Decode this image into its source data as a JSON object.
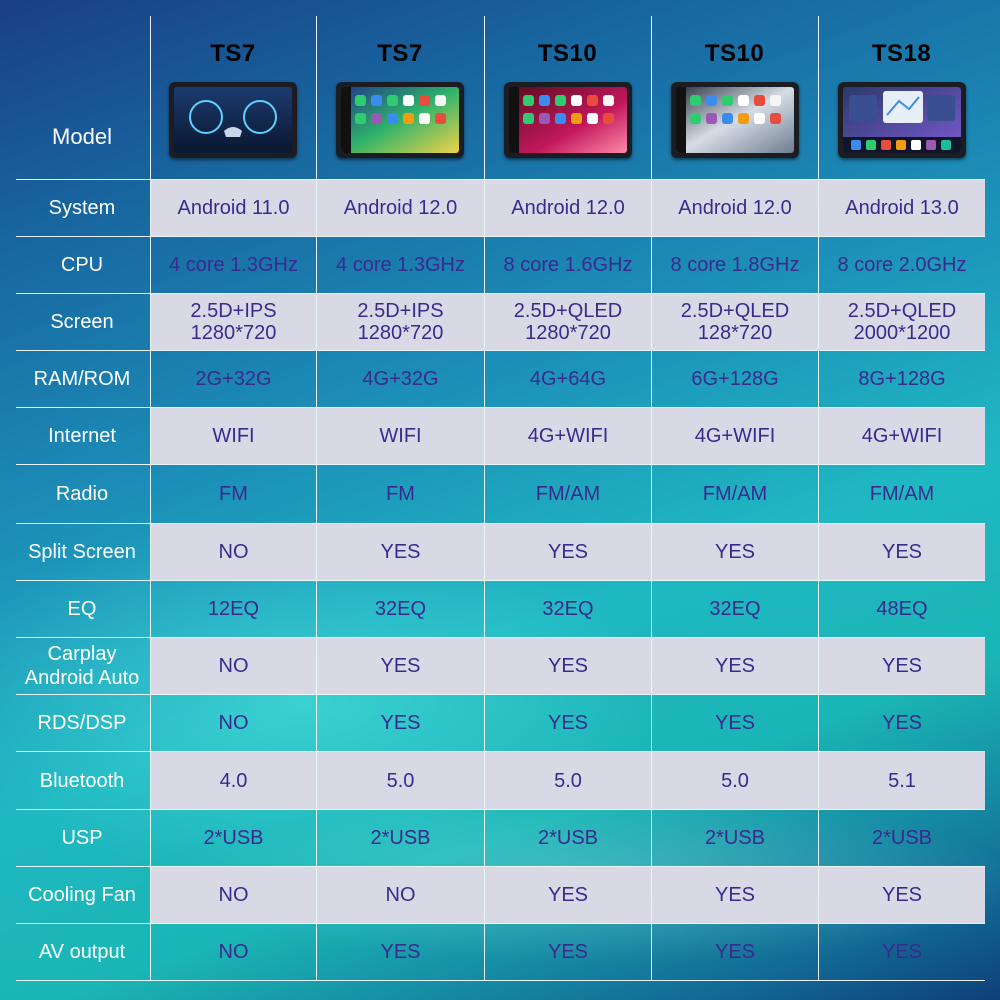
{
  "header": {
    "model_label": "Model",
    "models": [
      {
        "name": "TS7",
        "screen": "dashboard"
      },
      {
        "name": "TS7",
        "screen": "carplay-green"
      },
      {
        "name": "TS10",
        "screen": "carplay-red"
      },
      {
        "name": "TS10",
        "screen": "carplay-silver"
      },
      {
        "name": "TS18",
        "screen": "map-dock"
      }
    ]
  },
  "rows": [
    {
      "label": "System",
      "values": [
        "Android 11.0",
        "Android 12.0",
        "Android 12.0",
        "Android 12.0",
        "Android 13.0"
      ]
    },
    {
      "label": "CPU",
      "values": [
        "4 core 1.3GHz",
        "4 core 1.3GHz",
        "8 core 1.6GHz",
        "8 core 1.8GHz",
        "8 core 2.0GHz"
      ]
    },
    {
      "label": "Screen",
      "values": [
        [
          "2.5D+IPS",
          "1280*720"
        ],
        [
          "2.5D+IPS",
          "1280*720"
        ],
        [
          "2.5D+QLED",
          "1280*720"
        ],
        [
          "2.5D+QLED",
          "128*720"
        ],
        [
          "2.5D+QLED",
          "2000*1200"
        ]
      ]
    },
    {
      "label": "RAM/ROM",
      "values": [
        "2G+32G",
        "4G+32G",
        "4G+64G",
        "6G+128G",
        "8G+128G"
      ]
    },
    {
      "label": "Internet",
      "values": [
        "WIFI",
        "WIFI",
        "4G+WIFI",
        "4G+WIFI",
        "4G+WIFI"
      ]
    },
    {
      "label": "Radio",
      "values": [
        "FM",
        "FM",
        "FM/AM",
        "FM/AM",
        "FM/AM"
      ]
    },
    {
      "label": "Split Screen",
      "values": [
        "NO",
        "YES",
        "YES",
        "YES",
        "YES"
      ]
    },
    {
      "label": "EQ",
      "values": [
        "12EQ",
        "32EQ",
        "32EQ",
        "32EQ",
        "48EQ"
      ]
    },
    {
      "label": [
        "Carplay",
        "Android Auto"
      ],
      "values": [
        "NO",
        "YES",
        "YES",
        "YES",
        "YES"
      ]
    },
    {
      "label": "RDS/DSP",
      "values": [
        "NO",
        "YES",
        "YES",
        "YES",
        "YES"
      ]
    },
    {
      "label": "Bluetooth",
      "values": [
        "4.0",
        "5.0",
        "5.0",
        "5.0",
        "5.1"
      ]
    },
    {
      "label": "USP",
      "values": [
        "2*USB",
        "2*USB",
        "2*USB",
        "2*USB",
        "2*USB"
      ]
    },
    {
      "label": "Cooling Fan",
      "values": [
        "NO",
        "NO",
        "YES",
        "YES",
        "YES"
      ]
    },
    {
      "label": "AV output",
      "values": [
        "NO",
        "YES",
        "YES",
        "YES",
        "YES"
      ]
    }
  ],
  "colors": {
    "cell_light": "#d9d9e6",
    "value_text": "#3a2a8e",
    "label_text": "#ffffff",
    "model_text": "#000000"
  }
}
